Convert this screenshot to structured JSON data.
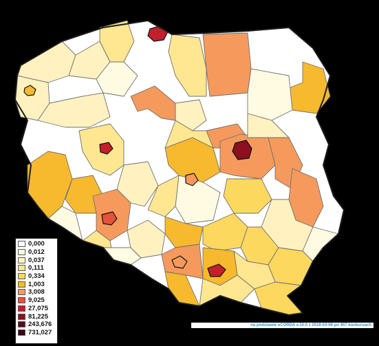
{
  "legend": {
    "items": [
      {
        "label": "0,000",
        "color": "#ffffff"
      },
      {
        "label": "0,012",
        "color": "#fffbe3"
      },
      {
        "label": "0,037",
        "color": "#fff2c0"
      },
      {
        "label": "0,111",
        "color": "#ffe690"
      },
      {
        "label": "0,334",
        "color": "#fdd85e"
      },
      {
        "label": "1,003",
        "color": "#f7b92e"
      },
      {
        "label": "3,008",
        "color": "#f59a5c"
      },
      {
        "label": "9,025",
        "color": "#e5523a"
      },
      {
        "label": "27,075",
        "color": "#c2202a"
      },
      {
        "label": "81,225",
        "color": "#8c1020"
      },
      {
        "label": "243,676",
        "color": "#5c0a18"
      },
      {
        "label": "731,027",
        "color": "#3a0510"
      }
    ]
  },
  "source_note": "na podstawie eCORDA v.10.0 z 2018-03-06 po 457 konkursach",
  "colors": {
    "background": "#000000",
    "region_border": "#6f6f6f",
    "note_text": "#2f8fd0"
  }
}
